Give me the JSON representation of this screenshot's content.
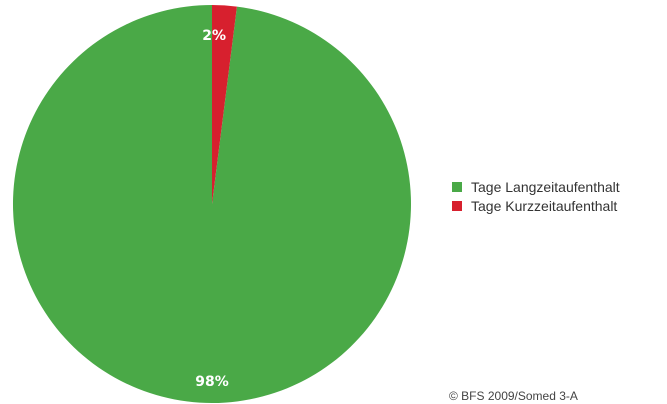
{
  "chart_data": {
    "type": "pie",
    "start_angle": "top",
    "direction": "counterclockwise",
    "series": [
      {
        "name": "Tage Langzeitaufenthalt",
        "value": 98,
        "label": "98%",
        "color": "#4aa947"
      },
      {
        "name": "Tage Kurzzeitaufenthalt",
        "value": 2,
        "label": "2%",
        "color": "#d7202e"
      }
    ],
    "legend_position": "right"
  },
  "source": "© BFS 2009/Somed 3-A"
}
